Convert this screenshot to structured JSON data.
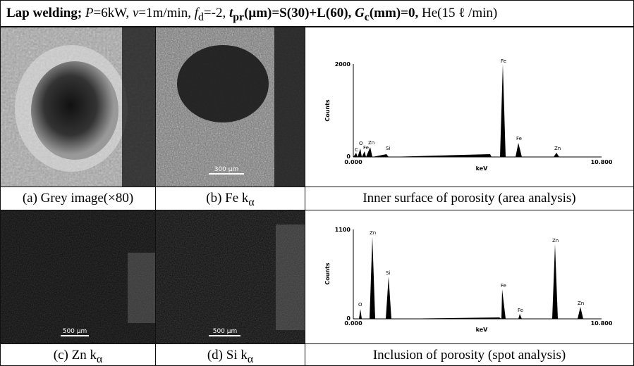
{
  "header": {
    "segments": [
      "Lap welding;",
      "P",
      "=6kW,",
      "v",
      "=1m/min,",
      "f",
      "d",
      "=-2,",
      "t",
      "pr",
      "(μm)=S(30)+L(60),",
      "G",
      "c",
      "(mm)=0,",
      "He(15 ℓ /min)"
    ]
  },
  "images": [
    {
      "caption": "(a) Grey image(×80)"
    },
    {
      "caption": "(b) Fe k",
      "sub": "α",
      "scale": "300 μm"
    },
    {
      "caption": "(c) Zn k",
      "sub": "α",
      "scale": "500 μm"
    },
    {
      "caption": "(d) Si k",
      "sub": "α",
      "scale": "500 μm"
    }
  ],
  "spectra": [
    {
      "caption": "Inner surface of porosity (area analysis)",
      "ylabel": "Counts",
      "xlabel": "keV",
      "ymax": "2000",
      "ymin": "0",
      "xmin": "0.000",
      "xmax": "10.800",
      "peaks": [
        "C",
        "O",
        "Fe",
        "Zn",
        "Si",
        "Fe",
        "Fe",
        "Zn"
      ]
    },
    {
      "caption": "Inclusion of porosity (spot analysis)",
      "ylabel": "Counts",
      "xlabel": "keV",
      "ymax": "1100",
      "ymin": "0",
      "xmin": "0.000",
      "xmax": "10.800",
      "peaks": [
        "O",
        "Zn",
        "Si",
        "Fe",
        "Fe",
        "Zn",
        "Zn"
      ]
    }
  ]
}
